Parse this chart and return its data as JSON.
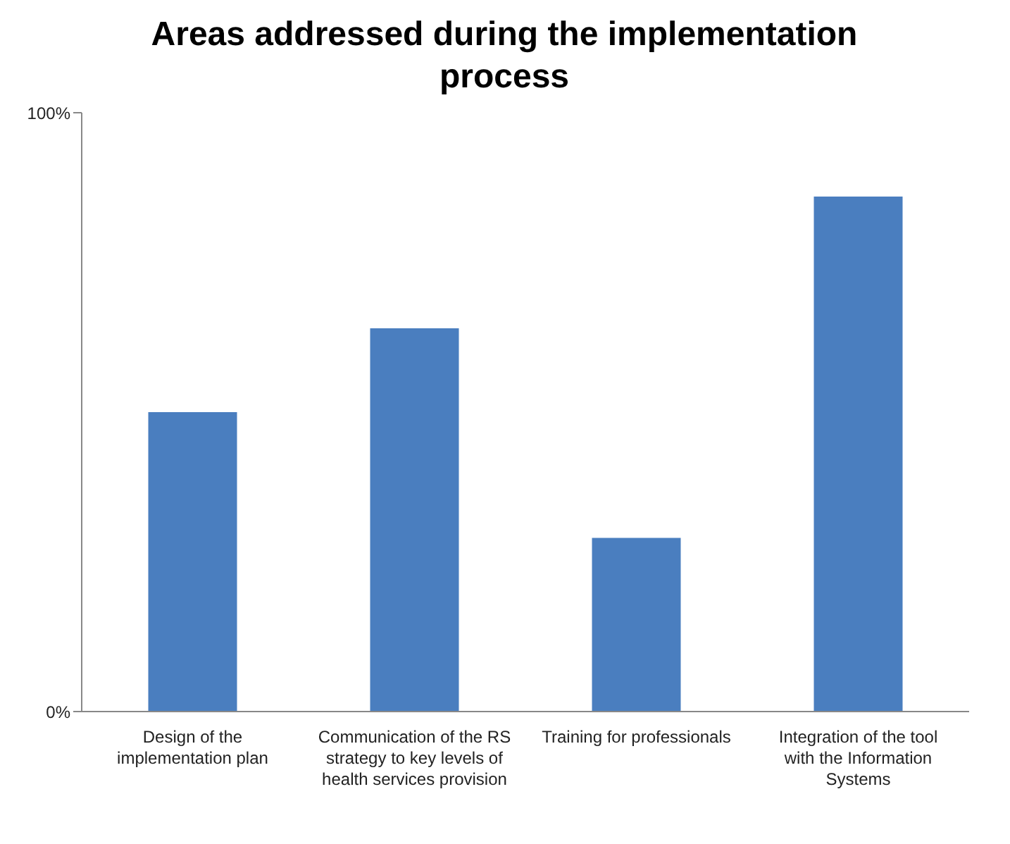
{
  "chart_data": {
    "type": "bar",
    "title": "Areas addressed during the implementation process",
    "categories": [
      "Design of the implementation plan",
      "Communication of the RS strategy to key levels of health services provision",
      "Training for professionals",
      "Integration of the tool with the Information Systems"
    ],
    "values": [
      50,
      64,
      29,
      86
    ],
    "color": "#4a7ebf",
    "ylim": [
      0,
      100
    ],
    "yticks": [
      {
        "value": 0,
        "label": "0%"
      },
      {
        "value": 100,
        "label": "100%"
      }
    ],
    "grid": false,
    "legend": false
  }
}
